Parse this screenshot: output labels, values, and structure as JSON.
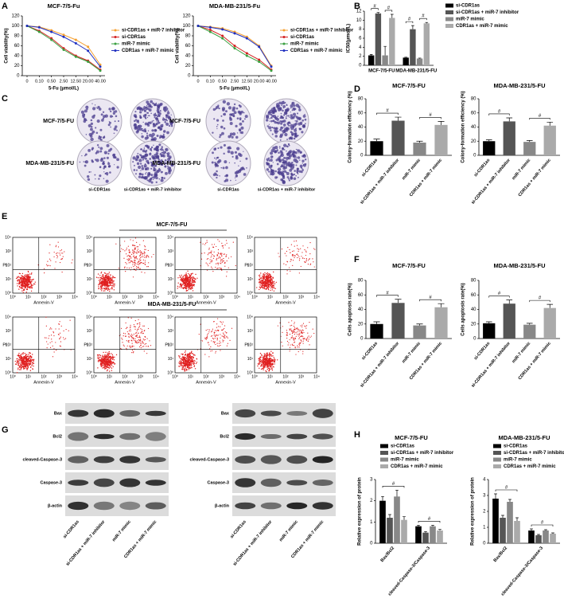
{
  "panel_labels": [
    "A",
    "B",
    "C",
    "D",
    "E",
    "F",
    "G",
    "H"
  ],
  "chart_data": [
    {
      "type": "line",
      "title": "MCF-7/5-Fu",
      "xlabel": "5-Fu (μmol/L)",
      "ylabel": "Cell viability(%)",
      "categories": [
        "0",
        "0.10",
        "0.50",
        "2.50",
        "12.50",
        "20.00",
        "40.00"
      ],
      "ylim": [
        0,
        120
      ],
      "yticks": [
        0,
        20,
        40,
        60,
        80,
        100,
        120
      ],
      "series": [
        {
          "name": "si-CDR1as + miR-7 inhibitor",
          "color": "#f5a030",
          "values": [
            100,
            98,
            91,
            82,
            72,
            58,
            22
          ]
        },
        {
          "name": "si-CDR1as",
          "color": "#d42020",
          "values": [
            100,
            90,
            75,
            55,
            40,
            30,
            12
          ]
        },
        {
          "name": "miR-7 mimic",
          "color": "#3aa040",
          "values": [
            100,
            88,
            72,
            52,
            38,
            28,
            10
          ]
        },
        {
          "name": "CDR1as + miR-7 mimic",
          "color": "#2030c0",
          "values": [
            100,
            97,
            88,
            78,
            65,
            50,
            18
          ]
        }
      ]
    },
    {
      "type": "line",
      "title": "MDA-MB-231/5-Fu",
      "xlabel": "5-Fu (μmol/L)",
      "ylabel": "Cell viability(%)",
      "categories": [
        "0",
        "0.10",
        "0.50",
        "2.50",
        "12.50",
        "20.00",
        "40.00"
      ],
      "ylim": [
        0,
        120
      ],
      "yticks": [
        0,
        20,
        40,
        60,
        80,
        100,
        120
      ],
      "series": [
        {
          "name": "si-CDR1as + miR-7 inhibitor",
          "color": "#f5a030",
          "values": [
            100,
            98,
            95,
            88,
            78,
            60,
            20
          ]
        },
        {
          "name": "si-CDR1as",
          "color": "#d42020",
          "values": [
            100,
            92,
            80,
            60,
            45,
            32,
            12
          ]
        },
        {
          "name": "miR-7 mimic",
          "color": "#3aa040",
          "values": [
            100,
            88,
            75,
            55,
            40,
            28,
            10
          ]
        },
        {
          "name": "CDR1as + miR-7 mimic",
          "color": "#2030c0",
          "values": [
            100,
            97,
            93,
            85,
            75,
            58,
            18
          ]
        }
      ]
    },
    {
      "type": "bar",
      "ylabel": "IC50(μmol/L)",
      "categories": [
        "MCF-7/5-FU",
        "MDA-MB-231/5-FU"
      ],
      "ylim": [
        0,
        12
      ],
      "yticks": [
        0,
        2,
        4,
        6,
        8,
        10,
        12
      ],
      "sig_label": "#",
      "series": [
        {
          "name": "si-CDR1as",
          "color": "#000000",
          "values": [
            2.2,
            1.7
          ],
          "errors": [
            0.2,
            0.1
          ]
        },
        {
          "name": "si-CDR1as + miR-7 inhibitor",
          "color": "#555555",
          "values": [
            11.5,
            8.0
          ],
          "errors": [
            0.2,
            0.8
          ]
        },
        {
          "name": "miR-7 mimic",
          "color": "#888888",
          "values": [
            2.2,
            1.5
          ],
          "errors": [
            2.0,
            0.1
          ]
        },
        {
          "name": "CDR1as + miR-7 mimic",
          "color": "#aaaaaa",
          "values": [
            10.5,
            9.3
          ],
          "errors": [
            0.8,
            0.2
          ]
        }
      ]
    },
    {
      "type": "bar",
      "title": "MCF-7/5-FU",
      "ylabel": "Colony-formation efficiency (%)",
      "categories": [
        "si-CDR1as",
        "si-CDR1as + miR-7 inhibitor",
        "miR-7 mimic",
        "CDR1as + miR-7 mimic"
      ],
      "values": [
        20,
        49,
        18,
        43
      ],
      "errors": [
        3,
        5,
        2,
        5
      ],
      "colors": [
        "#000000",
        "#555555",
        "#888888",
        "#aaaaaa"
      ],
      "ylim": [
        0,
        80
      ],
      "yticks": [
        0,
        20,
        40,
        60,
        80
      ],
      "sig_label": "#"
    },
    {
      "type": "bar",
      "title": "MDA-MB-231/5-FU",
      "ylabel": "Colony-formation efficiency (%)",
      "categories": [
        "si-CDR1as",
        "si-CDR1as + miR-7 inhibitor",
        "miR-7 mimic",
        "CDR1as + miR-7 mimic"
      ],
      "values": [
        20,
        48,
        19,
        42
      ],
      "errors": [
        2,
        5,
        2,
        5
      ],
      "colors": [
        "#000000",
        "#555555",
        "#888888",
        "#aaaaaa"
      ],
      "ylim": [
        0,
        80
      ],
      "yticks": [
        0,
        20,
        40,
        60,
        80
      ],
      "sig_label": "#"
    },
    {
      "type": "bar",
      "title": "MCF-7/5-FU",
      "ylabel": "Cells apoptosis rate(%)",
      "categories": [
        "si-CDR1as",
        "si-CDR1as + miR-7 inhibitor",
        "miR-7 mimic",
        "CDR1as + miR-7 mimic"
      ],
      "values": [
        20,
        49,
        18,
        43
      ],
      "errors": [
        3,
        5,
        2,
        5
      ],
      "colors": [
        "#000000",
        "#555555",
        "#888888",
        "#aaaaaa"
      ],
      "ylim": [
        0,
        80
      ],
      "yticks": [
        0,
        20,
        40,
        60,
        80
      ],
      "sig_label": "#"
    },
    {
      "type": "bar",
      "title": "MDA-MB-231/5-FU",
      "ylabel": "Cells apoptosis rate(%)",
      "categories": [
        "si-CDR1as",
        "si-CDR1as + miR-7 inhibitor",
        "miR-7 mimic",
        "CDR1as + miR-7 mimic"
      ],
      "values": [
        21,
        48,
        19,
        42
      ],
      "errors": [
        2,
        5,
        2,
        5
      ],
      "colors": [
        "#000000",
        "#555555",
        "#888888",
        "#aaaaaa"
      ],
      "ylim": [
        0,
        80
      ],
      "yticks": [
        0,
        20,
        40,
        60,
        80
      ],
      "sig_label": "#"
    },
    {
      "type": "bar",
      "title": "MCF-7/5-FU",
      "ylabel": "Relative expression of protein",
      "categories": [
        "Bax/Bcl2",
        "cleaved-Caspase-3/Caspase-3"
      ],
      "ylim": [
        0,
        3
      ],
      "yticks": [
        0,
        1,
        2,
        3
      ],
      "sig_label": "#",
      "series": [
        {
          "name": "si-CDR1as",
          "color": "#000000",
          "values": [
            2.0,
            0.8
          ],
          "errors": [
            0.2,
            0.05
          ]
        },
        {
          "name": "si-CDR1as + miR-7 inhibitor",
          "color": "#555555",
          "values": [
            1.2,
            0.5
          ],
          "errors": [
            0.15,
            0.05
          ]
        },
        {
          "name": "miR-7 mimic",
          "color": "#888888",
          "values": [
            2.2,
            0.8
          ],
          "errors": [
            0.3,
            0.05
          ]
        },
        {
          "name": "CDR1as + miR-7 mimic",
          "color": "#aaaaaa",
          "values": [
            1.1,
            0.6
          ],
          "errors": [
            0.15,
            0.05
          ]
        }
      ]
    },
    {
      "type": "bar",
      "title": "MDA-MB-231/5-FU",
      "ylabel": "Relative expression of protein",
      "categories": [
        "Bax/Bcl2",
        "cleaved-Caspase-3/Caspase-3"
      ],
      "ylim": [
        0,
        4
      ],
      "yticks": [
        0,
        1,
        2,
        3,
        4
      ],
      "sig_label": "#",
      "series": [
        {
          "name": "si-CDR1as",
          "color": "#000000",
          "values": [
            2.8,
            0.8
          ],
          "errors": [
            0.3,
            0.1
          ]
        },
        {
          "name": "si-CDR1as + miR-7 inhibitor",
          "color": "#555555",
          "values": [
            1.6,
            0.5
          ],
          "errors": [
            0.15,
            0.05
          ]
        },
        {
          "name": "miR-7 mimic",
          "color": "#888888",
          "values": [
            2.6,
            0.8
          ],
          "errors": [
            0.15,
            0.05
          ]
        },
        {
          "name": "CDR1as + miR-7 mimic",
          "color": "#aaaaaa",
          "values": [
            1.4,
            0.6
          ],
          "errors": [
            0.2,
            0.05
          ]
        }
      ]
    }
  ],
  "colony": [
    {
      "rows": [
        "MCF-7/5-FU",
        "MDA-MB-231/5-FU"
      ],
      "columns": [
        "si-CDR1as",
        "si-CDR1as + miR-7 inhibitor"
      ]
    },
    {
      "rows": [
        "MCF-7/5-FU",
        "MDA-MB-231/5-FU"
      ],
      "columns": [
        "si-CDR1as",
        "si-CDR1as + miR-7 inhibitor"
      ]
    }
  ],
  "flow": {
    "groups": [
      "MCF-7/5-FU",
      "MDA-MB-231/5-FU"
    ],
    "xlabel": "Annexin-V",
    "ylabel": "PI",
    "ticks": [
      "10⁰",
      "10¹",
      "10²",
      "10³",
      "10⁴"
    ]
  },
  "western": [
    {
      "proteins": [
        "Bax",
        "Bcl2",
        "cleaved-Caspase-3",
        "Caspase-3",
        "β-actin"
      ],
      "lanes": [
        "si-CDR1as",
        "si-CDR1as + miR-7 inhibitor",
        "miR-7 mimic",
        "CDR1as + miR-7 mimic"
      ]
    },
    {
      "proteins": [
        "Bax",
        "Bcl2",
        "cleaved-Caspase-3",
        "Caspase-3",
        "β-actin"
      ],
      "lanes": [
        "si-CDR1as",
        "si-CDR1as + miR-7 inhibitor",
        "miR-7 mimic",
        "CDR1as + miR-7 mimic"
      ]
    }
  ]
}
